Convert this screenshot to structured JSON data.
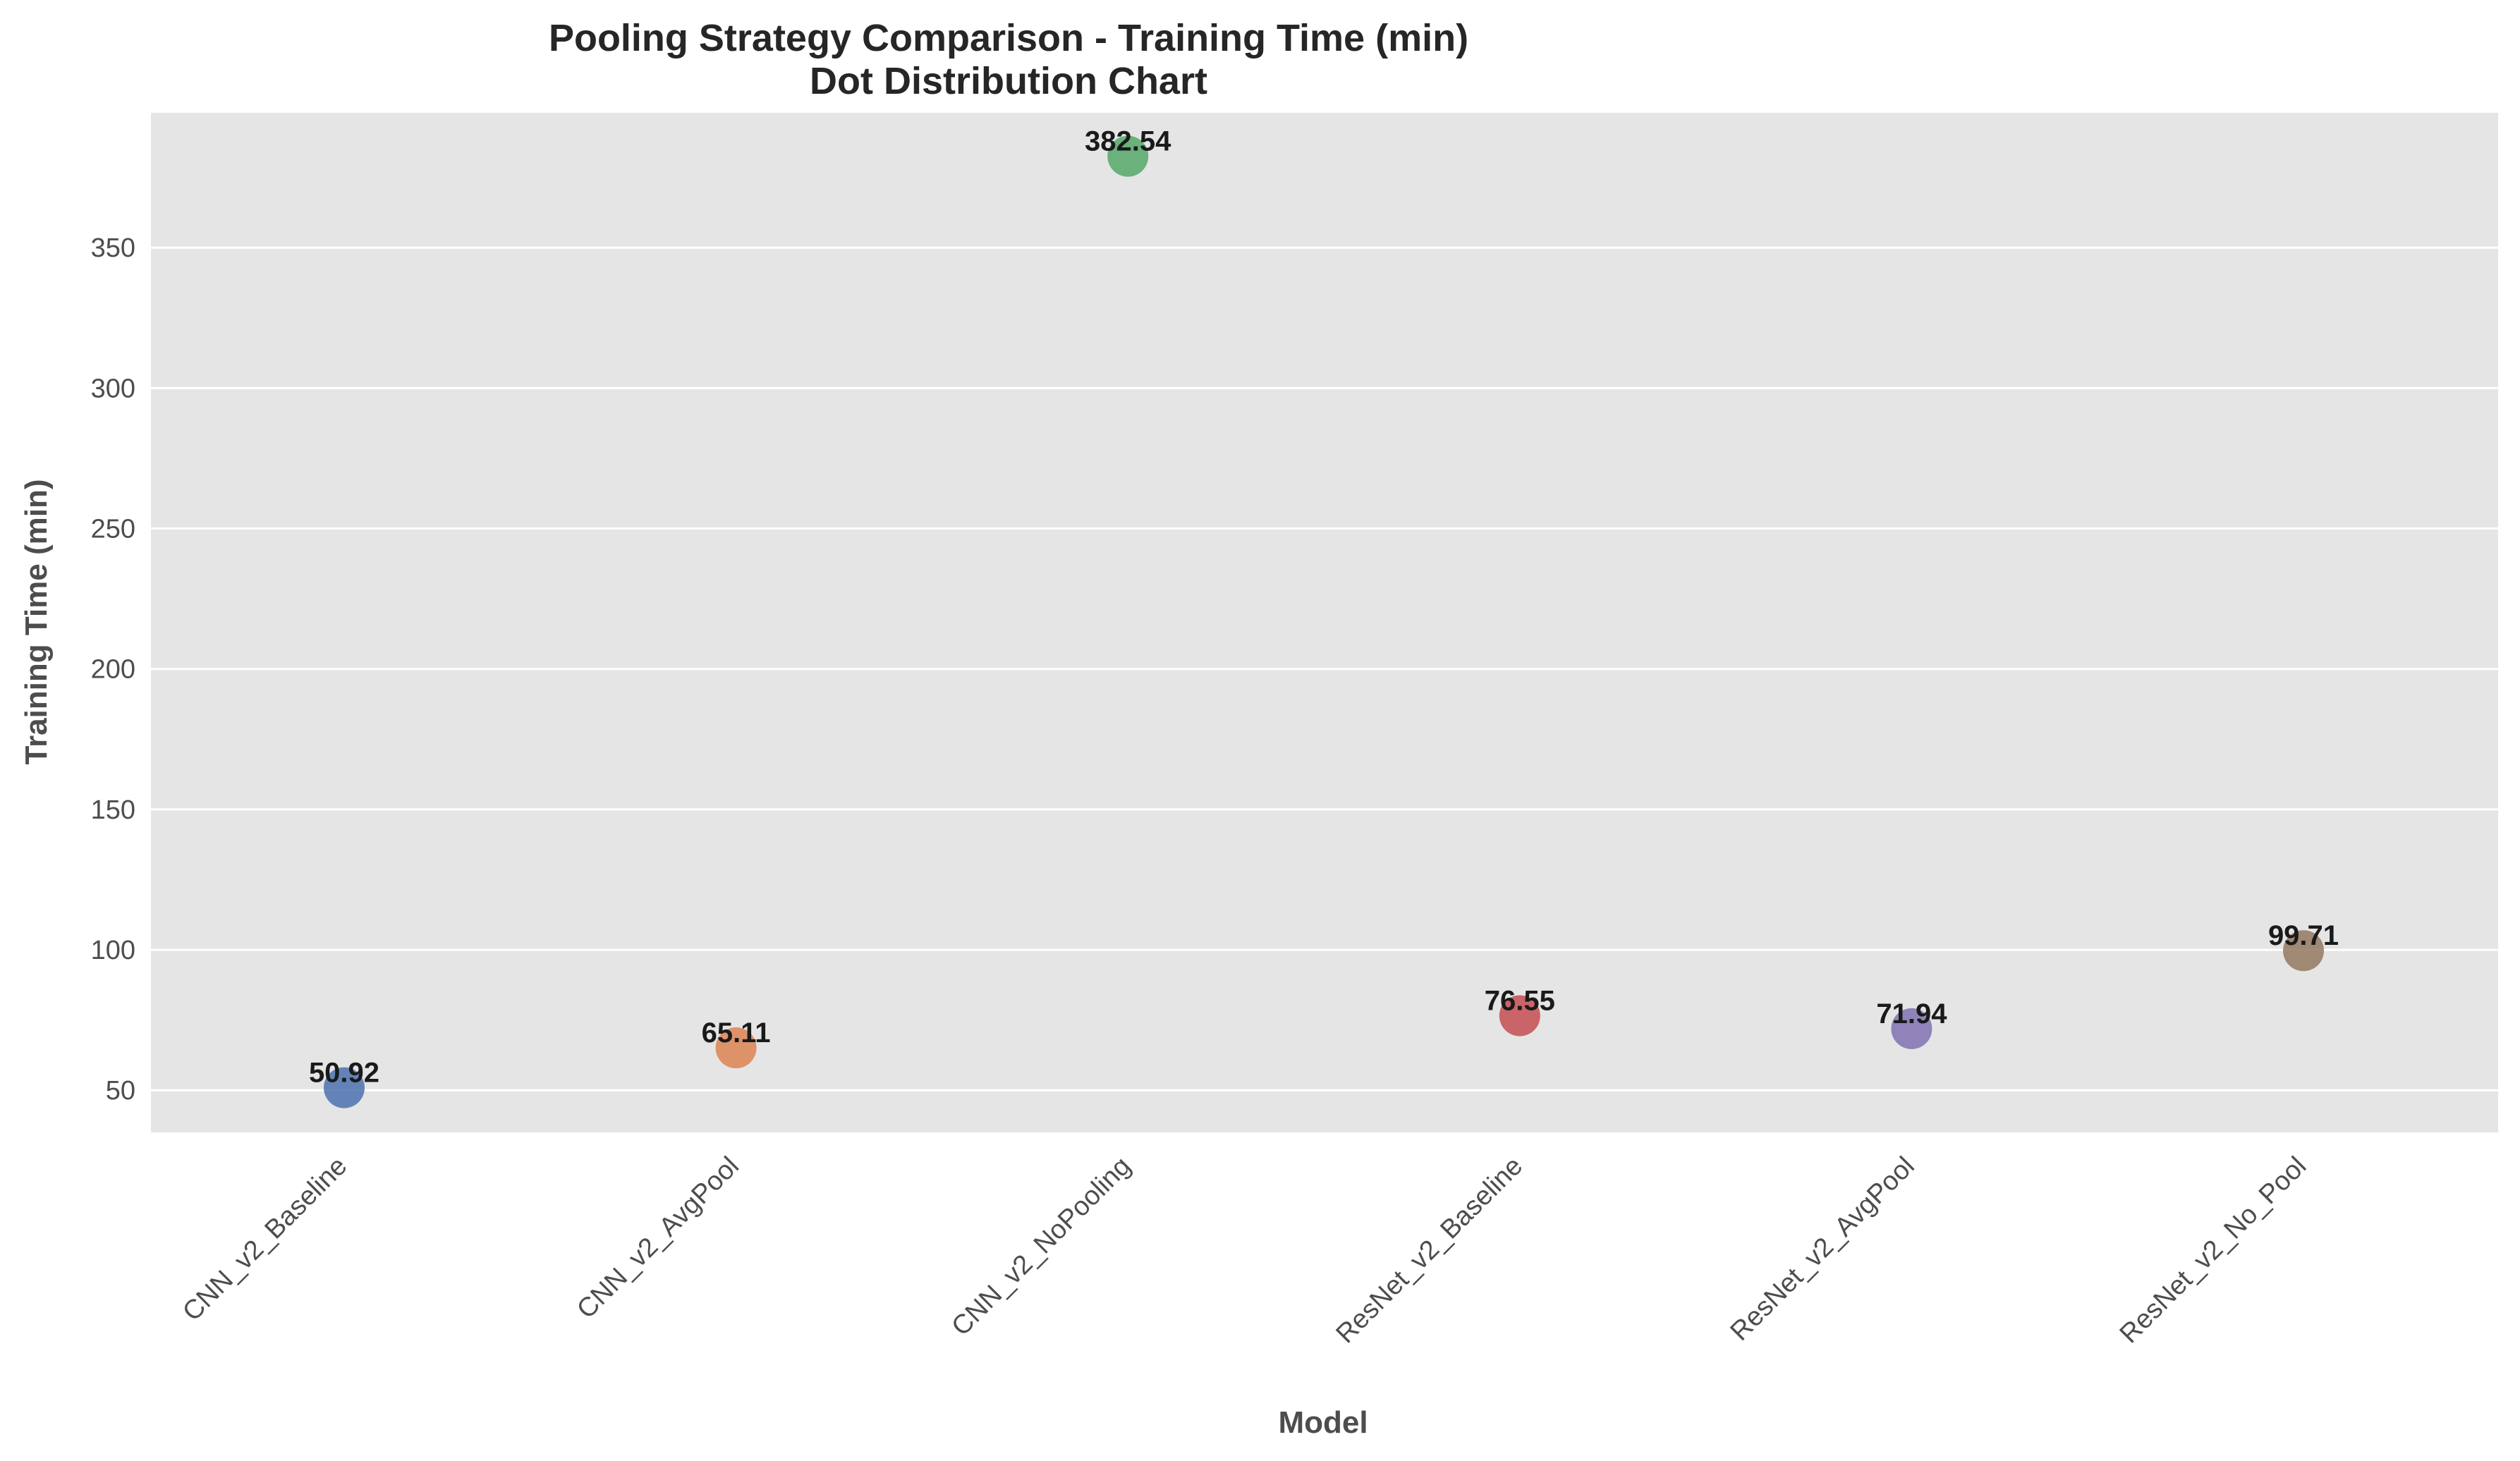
{
  "chart_data": {
    "type": "scatter",
    "title": "Pooling Strategy Comparison - Training Time (min)",
    "subtitle": "Dot Distribution Chart",
    "xlabel": "Model",
    "ylabel": "Training Time (min)",
    "categories": [
      "CNN_v2_Baseline",
      "CNN_v2_AvgPool",
      "CNN_v2_NoPooling",
      "ResNet_v2_Baseline",
      "ResNet_v2_AvgPool",
      "ResNet_v2_No_Pool"
    ],
    "values": [
      50.92,
      65.11,
      382.54,
      76.55,
      71.94,
      99.71
    ],
    "data_labels": [
      "50.92",
      "65.11",
      "382.54",
      "76.55",
      "71.94",
      "99.71"
    ],
    "colors": [
      "#4c72b0",
      "#dd8452",
      "#55a868",
      "#c44e52",
      "#8172b3",
      "#937860"
    ],
    "ylim": [
      35,
      398
    ],
    "yticks": [
      50,
      100,
      150,
      200,
      250,
      300,
      350
    ],
    "ytick_labels": [
      "50",
      "100",
      "150",
      "200",
      "250",
      "300",
      "350"
    ],
    "grid": true,
    "background": "#e5e5e5",
    "grid_color": "#ffffff"
  }
}
